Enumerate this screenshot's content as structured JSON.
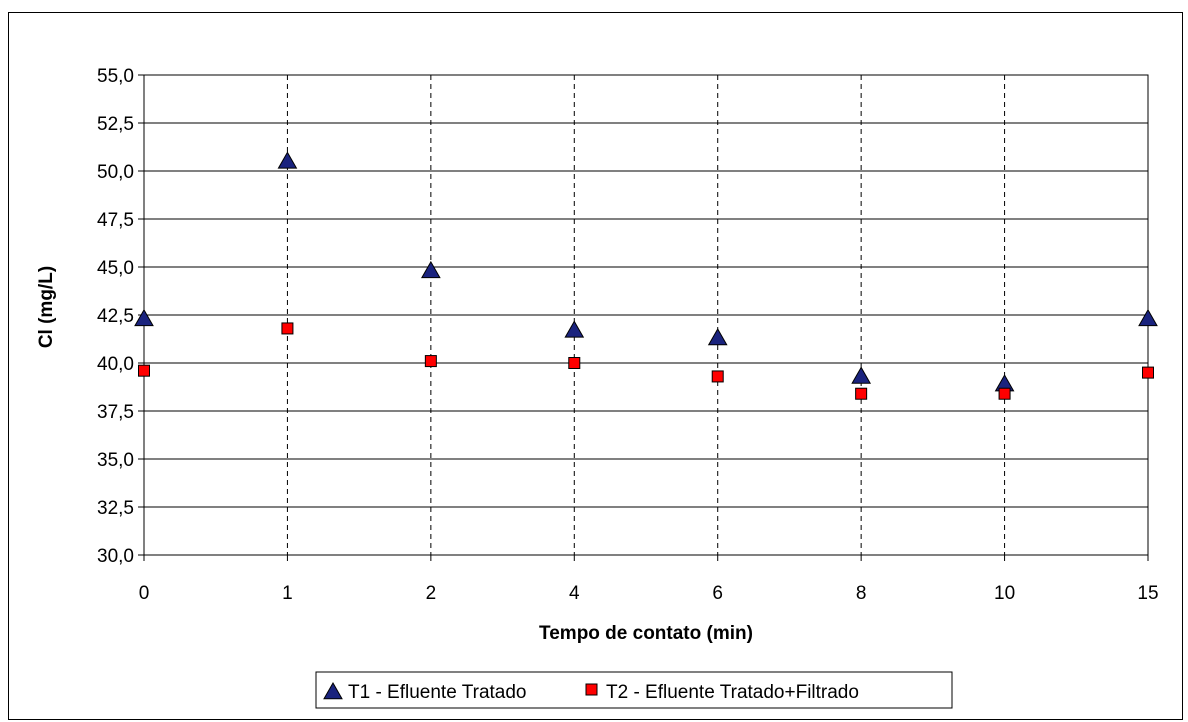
{
  "chart_data": {
    "type": "scatter",
    "title": "",
    "xlabel": "Tempo de contato (min)",
    "ylabel": "Cl (mg/L)",
    "categories": [
      "0",
      "1",
      "2",
      "4",
      "6",
      "8",
      "10",
      "15"
    ],
    "ylim": [
      30.0,
      55.0
    ],
    "yticks": [
      "30,0",
      "32,5",
      "35,0",
      "37,5",
      "40,0",
      "42,5",
      "45,0",
      "47,5",
      "50,0",
      "52,5",
      "55,0"
    ],
    "grid": {
      "horizontal": true,
      "vertical_dashed": true
    },
    "legend_position": "bottom",
    "series": [
      {
        "name": "T1 - Efluente Tratado",
        "marker": "triangle",
        "color": "#1a237e",
        "values": [
          42.3,
          50.5,
          44.8,
          41.7,
          41.3,
          39.3,
          38.9,
          42.3
        ]
      },
      {
        "name": "T2 - Efluente Tratado+Filtrado",
        "marker": "square",
        "color": "#ff0000",
        "values": [
          39.6,
          41.8,
          40.1,
          40.0,
          39.3,
          38.4,
          38.4,
          39.5
        ]
      }
    ]
  }
}
